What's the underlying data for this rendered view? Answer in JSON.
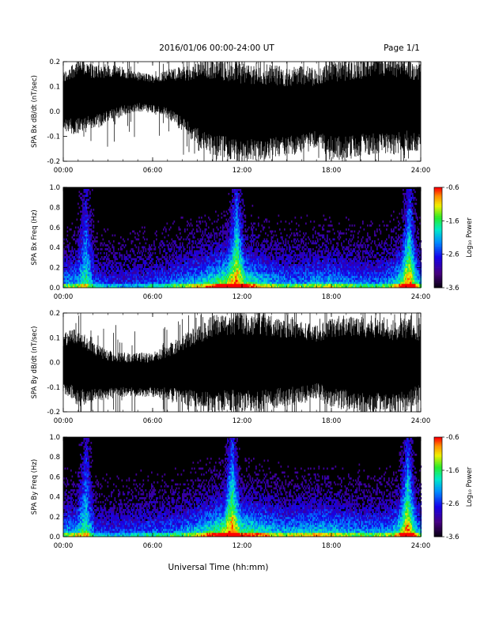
{
  "header": {
    "title": "2016/01/06  00:00-24:00 UT",
    "page": "Page 1/1"
  },
  "xlabel": "Universal Time (hh:mm)",
  "colorbar": {
    "label": "Log₁₀ Power",
    "ticks": [
      "-0.6",
      "-1.6",
      "-2.6",
      "-3.6"
    ],
    "range": [
      -3.6,
      -0.6
    ]
  },
  "chart_data": [
    {
      "type": "line",
      "ylabel": "SPA Bx dB/dt (nT/sec)",
      "xlim": [
        0,
        24
      ],
      "ylim": [
        -0.2,
        0.2
      ],
      "x_ticks": [
        "00:00",
        "06:00",
        "12:00",
        "18:00",
        "24:00"
      ],
      "y_ticks": [
        "0.2",
        "0.1",
        "0.0",
        "-0.1",
        "-0.2"
      ],
      "envelope_hours": [
        0,
        1,
        2,
        3,
        4,
        5,
        6,
        7,
        8,
        9,
        10,
        11,
        12,
        13,
        14,
        15,
        16,
        17,
        18,
        19,
        20,
        21,
        22,
        23,
        24
      ],
      "envelope_amplitude": [
        0.12,
        0.16,
        0.13,
        0.12,
        0.1,
        0.08,
        0.08,
        0.1,
        0.13,
        0.17,
        0.2,
        0.2,
        0.2,
        0.2,
        0.19,
        0.18,
        0.18,
        0.16,
        0.2,
        0.2,
        0.2,
        0.2,
        0.2,
        0.19,
        0.18
      ],
      "center_offset": [
        0.04,
        0.06,
        0.06,
        0.07,
        0.08,
        0.08,
        0.07,
        0.07,
        0.05,
        0.03,
        0.02,
        0.01,
        0.0,
        0.0,
        0.0,
        0.0,
        0.01,
        0.01,
        0.01,
        0.01,
        0.02,
        0.03,
        0.02,
        0.03,
        0.02
      ]
    },
    {
      "type": "heatmap",
      "ylabel": "SPA Bx Freq (Hz)",
      "xlim": [
        0,
        24
      ],
      "ylim": [
        0,
        1.0
      ],
      "x_ticks": [
        "00:00",
        "06:00",
        "12:00",
        "18:00",
        "24:00"
      ],
      "y_ticks": [
        "1.0",
        "0.8",
        "0.6",
        "0.4",
        "0.2",
        "0.0"
      ],
      "activity_hours": [
        0,
        1,
        2,
        3,
        4,
        5,
        6,
        7,
        8,
        9,
        10,
        11,
        12,
        13,
        14,
        15,
        16,
        17,
        18,
        19,
        20,
        21,
        22,
        23,
        24
      ],
      "activity_level": [
        0.55,
        0.6,
        0.45,
        0.4,
        0.38,
        0.4,
        0.45,
        0.5,
        0.55,
        0.65,
        0.75,
        0.95,
        0.85,
        0.7,
        0.6,
        0.55,
        0.55,
        0.6,
        0.6,
        0.55,
        0.5,
        0.5,
        0.6,
        0.9,
        0.55
      ],
      "bright_bursts_hours": [
        1.5,
        11.6,
        23.2
      ]
    },
    {
      "type": "line",
      "ylabel": "SPA By dB/dt (nT/sec)",
      "xlim": [
        0,
        24
      ],
      "ylim": [
        -0.2,
        0.2
      ],
      "x_ticks": [
        "00:00",
        "06:00",
        "12:00",
        "18:00",
        "24:00"
      ],
      "y_ticks": [
        "0.2",
        "0.1",
        "0.0",
        "-0.1",
        "-0.2"
      ],
      "envelope_hours": [
        0,
        1,
        2,
        3,
        4,
        5,
        6,
        7,
        8,
        9,
        10,
        11,
        12,
        13,
        14,
        15,
        16,
        17,
        18,
        19,
        20,
        21,
        22,
        23,
        24
      ],
      "envelope_amplitude": [
        0.12,
        0.16,
        0.12,
        0.1,
        0.09,
        0.09,
        0.09,
        0.11,
        0.14,
        0.17,
        0.2,
        0.2,
        0.2,
        0.2,
        0.19,
        0.18,
        0.17,
        0.15,
        0.18,
        0.2,
        0.2,
        0.2,
        0.2,
        0.19,
        0.16
      ],
      "center_offset": [
        0.0,
        -0.02,
        -0.04,
        -0.05,
        -0.05,
        -0.05,
        -0.05,
        -0.04,
        -0.03,
        -0.02,
        -0.01,
        0.0,
        0.0,
        0.0,
        0.0,
        0.0,
        0.0,
        0.0,
        0.0,
        0.0,
        -0.01,
        -0.01,
        -0.02,
        -0.01,
        0.0
      ]
    },
    {
      "type": "heatmap",
      "ylabel": "SPA By Freq (Hz)",
      "xlim": [
        0,
        24
      ],
      "ylim": [
        0,
        1.0
      ],
      "x_ticks": [
        "00:00",
        "06:00",
        "12:00",
        "18:00",
        "24:00"
      ],
      "y_ticks": [
        "1.0",
        "0.8",
        "0.6",
        "0.4",
        "0.2",
        "0.0"
      ],
      "activity_hours": [
        0,
        1,
        2,
        3,
        4,
        5,
        6,
        7,
        8,
        9,
        10,
        11,
        12,
        13,
        14,
        15,
        16,
        17,
        18,
        19,
        20,
        21,
        22,
        23,
        24
      ],
      "activity_level": [
        0.55,
        0.65,
        0.45,
        0.4,
        0.42,
        0.45,
        0.48,
        0.5,
        0.55,
        0.65,
        0.8,
        0.95,
        0.8,
        0.75,
        0.65,
        0.6,
        0.65,
        0.68,
        0.65,
        0.6,
        0.55,
        0.55,
        0.6,
        0.9,
        0.55
      ],
      "bright_bursts_hours": [
        1.5,
        11.3,
        23.1
      ]
    }
  ]
}
